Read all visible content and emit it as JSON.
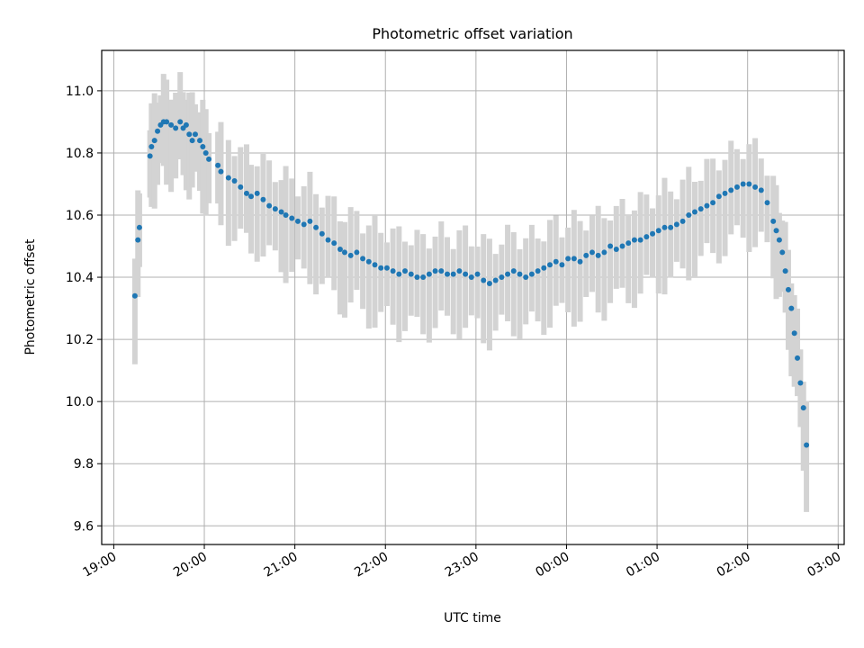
{
  "chart_data": {
    "type": "scatter",
    "title": "Photometric offset variation",
    "xlabel": "UTC time",
    "ylabel": "Photometric offset",
    "xlim": [
      "18:52",
      "03:04"
    ],
    "ylim": [
      9.54,
      11.13
    ],
    "x_ticks": [
      "19:00",
      "20:00",
      "21:00",
      "22:00",
      "23:00",
      "00:00",
      "01:00",
      "02:00",
      "03:00"
    ],
    "y_ticks": [
      9.6,
      9.8,
      10.0,
      10.2,
      10.4,
      10.6,
      10.8,
      11.0
    ],
    "y_tick_labels": [
      "9.6",
      "9.8",
      "10.0",
      "10.2",
      "10.4",
      "10.6",
      "10.8",
      "11.0"
    ],
    "grid": true,
    "colors": {
      "point": "#1f77b4",
      "errorbar": "#d3d3d3",
      "grid": "#b0b0b0"
    },
    "series": [
      {
        "x": [
          "19:14",
          "19:16",
          "19:17",
          "19:24",
          "19:25",
          "19:27",
          "19:29",
          "19:31",
          "19:33",
          "19:35",
          "19:38",
          "19:41",
          "19:44",
          "19:46",
          "19:48",
          "19:50",
          "19:52",
          "19:54",
          "19:57",
          "19:59",
          "20:01",
          "20:03",
          "20:09",
          "20:11",
          "20:16",
          "20:20",
          "20:24",
          "20:28",
          "20:31",
          "20:35",
          "20:39",
          "20:43",
          "20:47",
          "20:51",
          "20:54",
          "20:58",
          "21:02",
          "21:06",
          "21:10",
          "21:14",
          "21:18",
          "21:22",
          "21:26",
          "21:30",
          "21:33",
          "21:37",
          "21:41",
          "21:45",
          "21:49",
          "21:53",
          "21:57",
          "22:01",
          "22:05",
          "22:09",
          "22:13",
          "22:17",
          "22:21",
          "22:25",
          "22:29",
          "22:33",
          "22:37",
          "22:41",
          "22:45",
          "22:49",
          "22:53",
          "22:57",
          "23:01",
          "23:05",
          "23:09",
          "23:13",
          "23:17",
          "23:21",
          "23:25",
          "23:29",
          "23:33",
          "23:37",
          "23:41",
          "23:45",
          "23:49",
          "23:53",
          "23:57",
          "00:01",
          "00:05",
          "00:09",
          "00:13",
          "00:17",
          "00:21",
          "00:25",
          "00:29",
          "00:33",
          "00:37",
          "00:41",
          "00:45",
          "00:49",
          "00:53",
          "00:57",
          "01:01",
          "01:05",
          "01:09",
          "01:13",
          "01:17",
          "01:21",
          "01:25",
          "01:29",
          "01:33",
          "01:37",
          "01:41",
          "01:45",
          "01:49",
          "01:53",
          "01:57",
          "02:01",
          "02:05",
          "02:09",
          "02:13",
          "02:17",
          "02:19",
          "02:21",
          "02:23",
          "02:25",
          "02:27",
          "02:29",
          "02:31",
          "02:33",
          "02:35",
          "02:37",
          "02:39"
        ],
        "y": [
          10.34,
          10.52,
          10.56,
          10.79,
          10.82,
          10.84,
          10.87,
          10.89,
          10.9,
          10.9,
          10.89,
          10.88,
          10.9,
          10.88,
          10.89,
          10.86,
          10.84,
          10.86,
          10.84,
          10.82,
          10.8,
          10.78,
          10.76,
          10.74,
          10.72,
          10.71,
          10.69,
          10.67,
          10.66,
          10.67,
          10.65,
          10.63,
          10.62,
          10.61,
          10.6,
          10.59,
          10.58,
          10.57,
          10.58,
          10.56,
          10.54,
          10.52,
          10.51,
          10.49,
          10.48,
          10.47,
          10.48,
          10.46,
          10.45,
          10.44,
          10.43,
          10.43,
          10.42,
          10.41,
          10.42,
          10.41,
          10.4,
          10.4,
          10.41,
          10.42,
          10.42,
          10.41,
          10.41,
          10.42,
          10.41,
          10.4,
          10.41,
          10.39,
          10.38,
          10.39,
          10.4,
          10.41,
          10.42,
          10.41,
          10.4,
          10.41,
          10.42,
          10.43,
          10.44,
          10.45,
          10.44,
          10.46,
          10.46,
          10.45,
          10.47,
          10.48,
          10.47,
          10.48,
          10.5,
          10.49,
          10.5,
          10.51,
          10.52,
          10.52,
          10.53,
          10.54,
          10.55,
          10.56,
          10.56,
          10.57,
          10.58,
          10.6,
          10.61,
          10.62,
          10.63,
          10.64,
          10.66,
          10.67,
          10.68,
          10.69,
          10.7,
          10.7,
          10.69,
          10.68,
          10.64,
          10.58,
          10.55,
          10.52,
          10.48,
          10.42,
          10.36,
          10.3,
          10.22,
          10.14,
          10.06,
          9.98,
          9.86
        ],
        "yerr_band": [
          10.13,
          10.55
        ]
      }
    ]
  }
}
